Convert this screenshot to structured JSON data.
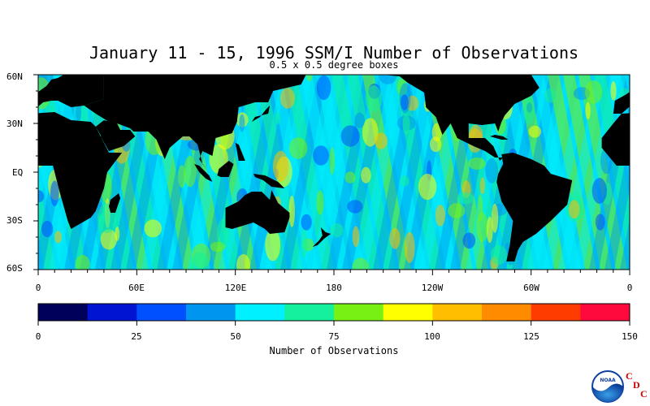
{
  "title": "January 11 - 15, 1996 SSM/I Number of Observations",
  "subtitle": "0.5 x 0.5 degree boxes",
  "lat_labels": [
    "60N",
    "30N",
    "EQ",
    "30S",
    "60S"
  ],
  "lon_labels": [
    "0",
    "60E",
    "120E",
    "180",
    "120W",
    "60W",
    "0"
  ],
  "colorbar": {
    "label": "Number of Observations",
    "tick_labels": [
      "0",
      "25",
      "50",
      "75",
      "100",
      "125",
      "150"
    ],
    "range": [
      0,
      150
    ],
    "colors": [
      "#00005a",
      "#0014d2",
      "#0050ff",
      "#0096f0",
      "#00f0ff",
      "#14f09b",
      "#78f014",
      "#ffff00",
      "#ffbe00",
      "#ff8c00",
      "#ff3c00",
      "#ff0a3c"
    ]
  },
  "logo": {
    "noaa_text": "NOAA",
    "cdc_letters": [
      "C",
      "D",
      "C"
    ]
  },
  "colors": {
    "land": "#000000",
    "background": "#ffffff"
  }
}
